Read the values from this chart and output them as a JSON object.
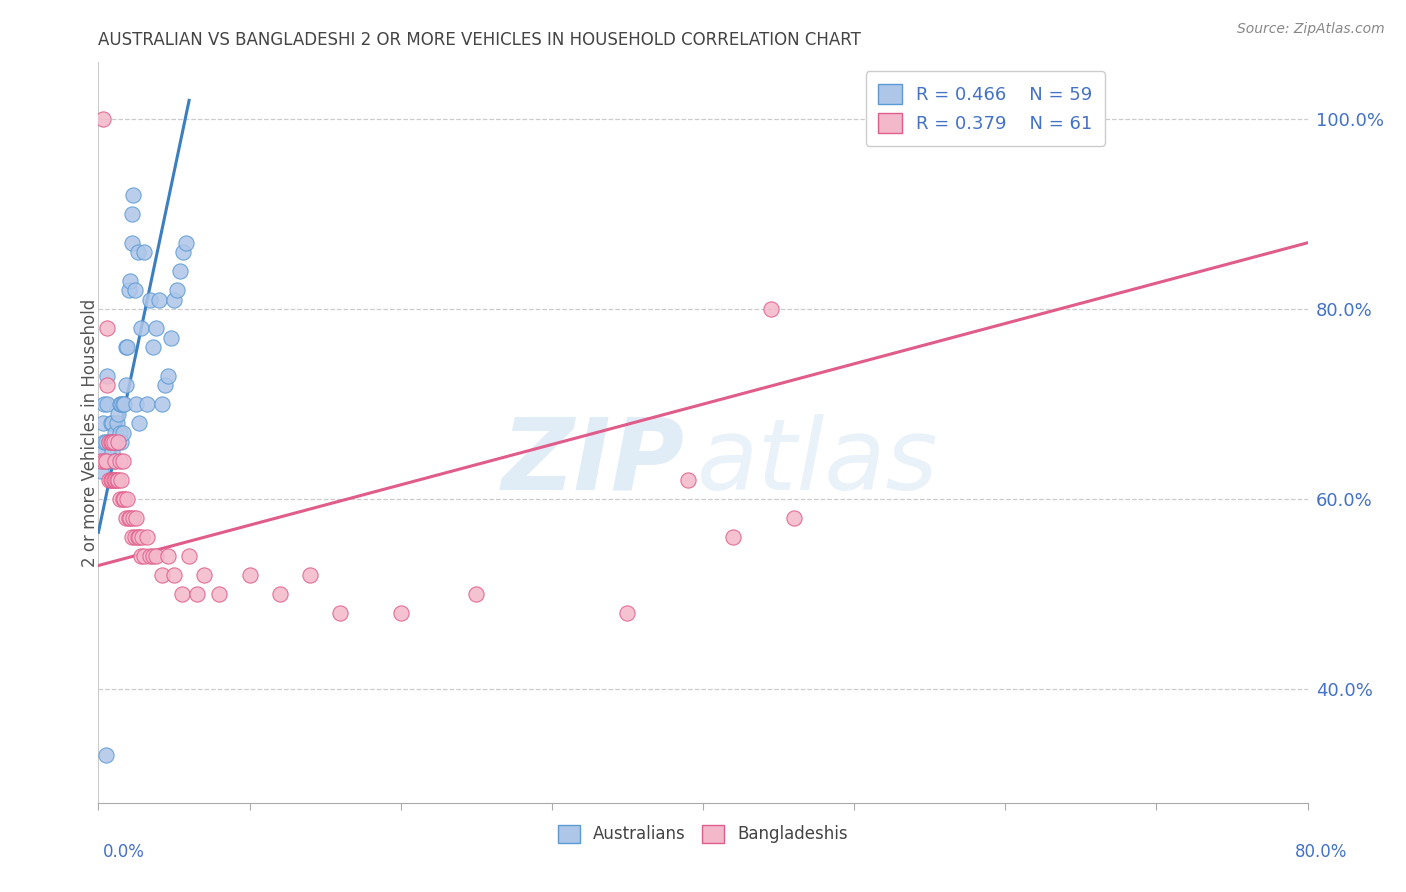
{
  "title": "AUSTRALIAN VS BANGLADESHI 2 OR MORE VEHICLES IN HOUSEHOLD CORRELATION CHART",
  "source": "Source: ZipAtlas.com",
  "ylabel": "2 or more Vehicles in Household",
  "y_right_ticks": [
    "40.0%",
    "60.0%",
    "80.0%",
    "100.0%"
  ],
  "legend_r1": "R = 0.466",
  "legend_n1": "N = 59",
  "legend_r2": "R = 0.379",
  "legend_n2": "N = 61",
  "color_blue_fill": "#aec6e8",
  "color_blue_edge": "#5b9bd5",
  "color_pink_fill": "#f4b8cb",
  "color_pink_edge": "#e05c8a",
  "color_blue_line": "#3c7fc0",
  "color_pink_line": "#e05c8a",
  "color_title": "#444444",
  "color_legend_r": "#4472c4",
  "color_source": "#888888",
  "xmin": 0.0,
  "xmax": 0.8,
  "ymin": 0.28,
  "ymax": 1.06,
  "aus_x": [
    0.002,
    0.003,
    0.003,
    0.004,
    0.004,
    0.005,
    0.005,
    0.006,
    0.006,
    0.007,
    0.007,
    0.008,
    0.008,
    0.009,
    0.009,
    0.01,
    0.01,
    0.011,
    0.011,
    0.012,
    0.012,
    0.013,
    0.013,
    0.014,
    0.014,
    0.015,
    0.015,
    0.016,
    0.016,
    0.017,
    0.018,
    0.018,
    0.019,
    0.02,
    0.021,
    0.022,
    0.022,
    0.023,
    0.024,
    0.025,
    0.026,
    0.027,
    0.028,
    0.03,
    0.032,
    0.034,
    0.036,
    0.038,
    0.04,
    0.042,
    0.044,
    0.046,
    0.048,
    0.05,
    0.052,
    0.054,
    0.056,
    0.058,
    0.005
  ],
  "aus_y": [
    0.63,
    0.65,
    0.68,
    0.66,
    0.7,
    0.64,
    0.66,
    0.7,
    0.73,
    0.64,
    0.66,
    0.66,
    0.68,
    0.65,
    0.68,
    0.64,
    0.66,
    0.66,
    0.67,
    0.66,
    0.68,
    0.66,
    0.69,
    0.67,
    0.7,
    0.66,
    0.7,
    0.67,
    0.7,
    0.7,
    0.72,
    0.76,
    0.76,
    0.82,
    0.83,
    0.87,
    0.9,
    0.92,
    0.82,
    0.7,
    0.86,
    0.68,
    0.78,
    0.86,
    0.7,
    0.81,
    0.76,
    0.78,
    0.81,
    0.7,
    0.72,
    0.73,
    0.77,
    0.81,
    0.82,
    0.84,
    0.86,
    0.87,
    0.33
  ],
  "ban_x": [
    0.002,
    0.003,
    0.004,
    0.005,
    0.006,
    0.006,
    0.007,
    0.007,
    0.008,
    0.008,
    0.009,
    0.009,
    0.01,
    0.01,
    0.011,
    0.011,
    0.012,
    0.013,
    0.013,
    0.014,
    0.014,
    0.015,
    0.016,
    0.016,
    0.017,
    0.018,
    0.019,
    0.02,
    0.021,
    0.022,
    0.023,
    0.024,
    0.025,
    0.026,
    0.027,
    0.028,
    0.029,
    0.03,
    0.032,
    0.034,
    0.036,
    0.038,
    0.042,
    0.046,
    0.05,
    0.055,
    0.06,
    0.065,
    0.07,
    0.08,
    0.1,
    0.12,
    0.14,
    0.16,
    0.2,
    0.25,
    0.35,
    0.39,
    0.42,
    0.445,
    0.46
  ],
  "ban_y": [
    0.64,
    1.0,
    0.64,
    0.64,
    0.72,
    0.78,
    0.62,
    0.66,
    0.62,
    0.66,
    0.62,
    0.66,
    0.62,
    0.66,
    0.62,
    0.64,
    0.62,
    0.62,
    0.66,
    0.6,
    0.64,
    0.62,
    0.6,
    0.64,
    0.6,
    0.58,
    0.6,
    0.58,
    0.58,
    0.56,
    0.58,
    0.56,
    0.58,
    0.56,
    0.56,
    0.54,
    0.56,
    0.54,
    0.56,
    0.54,
    0.54,
    0.54,
    0.52,
    0.54,
    0.52,
    0.5,
    0.54,
    0.5,
    0.52,
    0.5,
    0.52,
    0.5,
    0.52,
    0.48,
    0.48,
    0.5,
    0.48,
    0.62,
    0.56,
    0.8,
    0.58
  ],
  "aus_line_x0": 0.0,
  "aus_line_x1": 0.06,
  "aus_line_y0": 0.565,
  "aus_line_y1": 1.02,
  "ban_line_x0": 0.0,
  "ban_line_x1": 0.8,
  "ban_line_y0": 0.53,
  "ban_line_y1": 0.87
}
